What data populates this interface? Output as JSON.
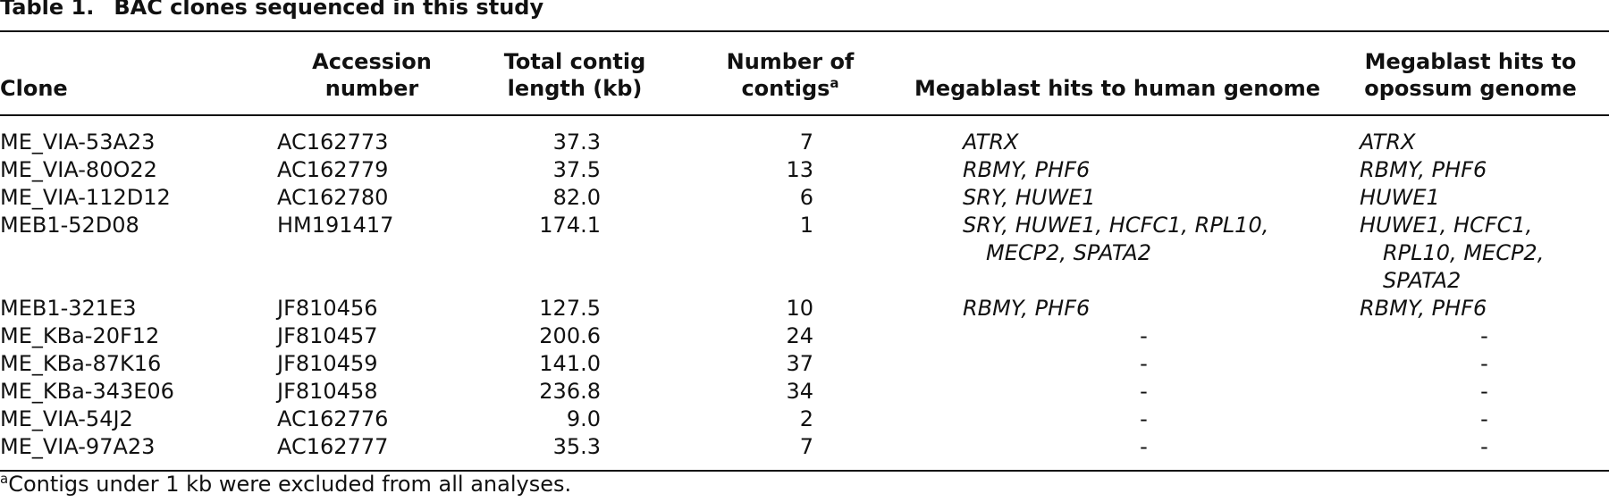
{
  "header": {
    "label": "Table 1.",
    "title": "BAC clones sequenced in this study"
  },
  "table": {
    "columns": [
      {
        "text": "Clone"
      },
      {
        "text": "Accession number"
      },
      {
        "text": "Total contig length (kb)"
      },
      {
        "text": "Number of contigs",
        "note": "a"
      },
      {
        "text": "Megablast hits to human genome"
      },
      {
        "text": "Megablast hits to opossum genome"
      }
    ],
    "rows": [
      [
        "ME_VIA-53A23",
        "AC162773",
        "37.3",
        "7",
        "ATRX",
        "ATRX"
      ],
      [
        "ME_VIA-80O22",
        "AC162779",
        "37.5",
        "13",
        "RBMY, PHF6",
        "RBMY, PHF6"
      ],
      [
        "ME_VIA-112D12",
        "AC162780",
        "82.0",
        "6",
        "SRY, HUWE1",
        "HUWE1"
      ],
      [
        "MEB1-52D08",
        "HM191417",
        "174.1",
        "1",
        "SRY, HUWE1, HCFC1, RPL10, MECP2, SPATA2",
        "HUWE1, HCFC1, RPL10, MECP2, SPATA2"
      ],
      [
        "MEB1-321E3",
        "JF810456",
        "127.5",
        "10",
        "RBMY, PHF6",
        "RBMY, PHF6"
      ],
      [
        "ME_KBa-20F12",
        "JF810457",
        "200.6",
        "24",
        "-",
        "-"
      ],
      [
        "ME_KBa-87K16",
        "JF810459",
        "141.0",
        "37",
        "-",
        "-"
      ],
      [
        "ME_KBa-343E06",
        "JF810458",
        "236.8",
        "34",
        "-",
        "-"
      ],
      [
        "ME_VIA-54J2",
        "AC162776",
        "9.0",
        "2",
        "-",
        "-"
      ],
      [
        "ME_VIA-97A23",
        "AC162777",
        "35.3",
        "7",
        "-",
        "-"
      ]
    ]
  },
  "footnote": {
    "mark": "a",
    "text": "Contigs under 1 kb were excluded from all analyses."
  }
}
